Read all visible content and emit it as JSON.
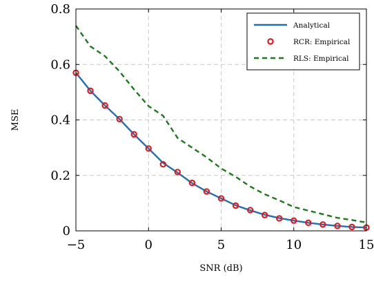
{
  "chart_data": {
    "type": "line",
    "xlabel": "SNR (dB)",
    "ylabel": "MSE",
    "xlim": [
      -5,
      15
    ],
    "ylim": [
      0,
      0.8
    ],
    "xticks": [
      -5,
      0,
      5,
      10,
      15
    ],
    "xtick_labels": [
      "−5",
      "0",
      "5",
      "10",
      "15"
    ],
    "yticks": [
      0,
      0.2,
      0.4,
      0.6,
      0.8
    ],
    "ytick_labels": [
      "0",
      "0.2",
      "0.4",
      "0.6",
      "0.8"
    ],
    "grid": true,
    "legend_position": "top-right",
    "x": [
      -5,
      -4,
      -3,
      -2,
      -1,
      0,
      1,
      2,
      3,
      4,
      5,
      6,
      7,
      8,
      9,
      10,
      11,
      12,
      13,
      14,
      15
    ],
    "series": [
      {
        "name": "Analytical",
        "style": "solid-line",
        "color": "#1f6fb2",
        "values": [
          0.57,
          0.505,
          0.452,
          0.403,
          0.348,
          0.297,
          0.245,
          0.21,
          0.172,
          0.142,
          0.117,
          0.092,
          0.074,
          0.058,
          0.046,
          0.037,
          0.029,
          0.023,
          0.018,
          0.014,
          0.012
        ]
      },
      {
        "name": "RCR: Empirical",
        "style": "markers",
        "color": "#e31a1c",
        "values": [
          0.57,
          0.505,
          0.452,
          0.403,
          0.348,
          0.297,
          0.24,
          0.212,
          0.173,
          0.142,
          0.117,
          0.091,
          0.075,
          0.057,
          0.045,
          0.037,
          0.029,
          0.023,
          0.018,
          0.014,
          0.012
        ]
      },
      {
        "name": "RLS: Empirical",
        "style": "dashed-line",
        "color": "#1a7a1a",
        "values": [
          0.74,
          0.665,
          0.63,
          0.575,
          0.51,
          0.45,
          0.415,
          0.335,
          0.3,
          0.265,
          0.225,
          0.195,
          0.16,
          0.132,
          0.11,
          0.086,
          0.073,
          0.06,
          0.047,
          0.039,
          0.03
        ]
      }
    ]
  }
}
